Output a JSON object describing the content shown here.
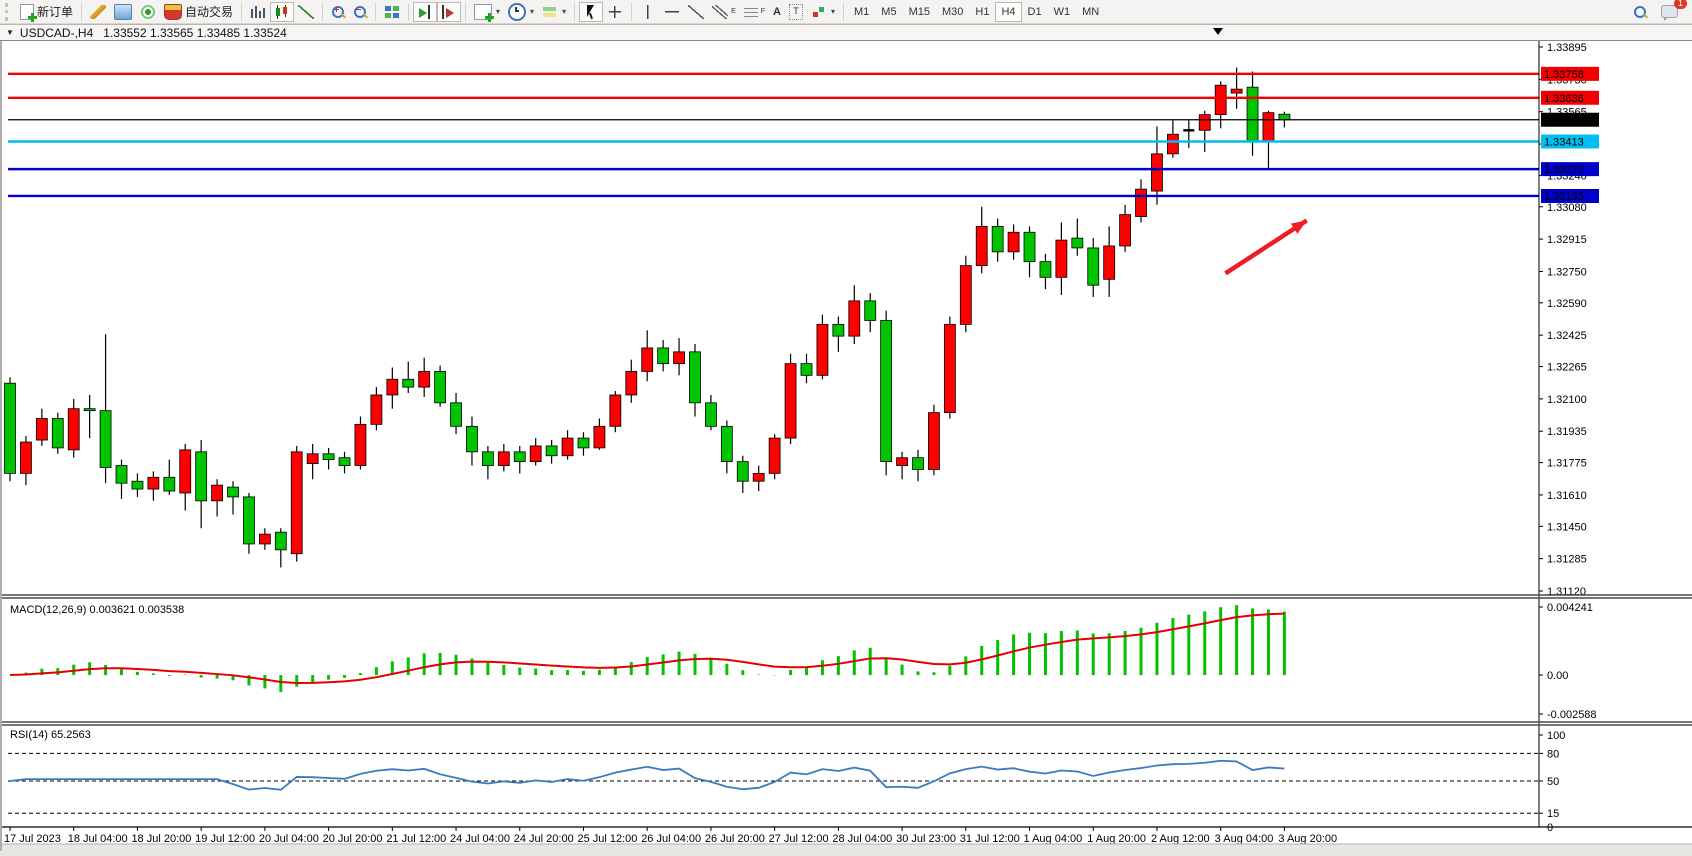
{
  "toolbar": {
    "new_order_label": "新订单",
    "auto_trading_label": "自动交易",
    "timeframes": [
      "M1",
      "M5",
      "M15",
      "M30",
      "H1",
      "H4",
      "D1",
      "W1",
      "MN"
    ],
    "active_timeframe": "H4",
    "notification_count": "1",
    "icon_glyphs": {
      "channel": "E",
      "fibonacci": "F",
      "text_tool": "A",
      "label_tool": "T"
    }
  },
  "title_bar": {
    "symbol_period": "USDCAD-,H4",
    "ohlc": "1.33552 1.33565 1.33485 1.33524"
  },
  "chart_data": {
    "type": "candlestick",
    "symbol": "USDCAD",
    "timeframe": "H4",
    "up_color": "#FF0000",
    "down_color": "#00C400",
    "current_price": "1.33524",
    "price_ticks": [
      "1.33895",
      "1.33730",
      "1.33565",
      "1.33400",
      "1.33240",
      "1.33080",
      "1.32915",
      "1.32750",
      "1.32590",
      "1.32425",
      "1.32265",
      "1.32100",
      "1.31935",
      "1.31775",
      "1.31610",
      "1.31450",
      "1.31285",
      "1.31120"
    ],
    "time_labels": [
      "17 Jul 2023",
      "18 Jul 04:00",
      "18 Jul 20:00",
      "19 Jul 12:00",
      "20 Jul 04:00",
      "20 Jul 20:00",
      "21 Jul 12:00",
      "24 Jul 04:00",
      "24 Jul 20:00",
      "25 Jul 12:00",
      "26 Jul 04:00",
      "26 Jul 20:00",
      "27 Jul 12:00",
      "28 Jul 04:00",
      "30 Jul 23:00",
      "31 Jul 12:00",
      "1 Aug 04:00",
      "1 Aug 20:00",
      "2 Aug 12:00",
      "3 Aug 04:00",
      "3 Aug 20:00"
    ],
    "label_every_n_candles": 4,
    "horizontal_lines": [
      {
        "price": 1.33758,
        "label": "1.33758",
        "color": "#F40000",
        "width": 2.4
      },
      {
        "price": 1.33636,
        "label": "1.33636",
        "color": "#F40000",
        "width": 2.4
      },
      {
        "price": 1.33524,
        "label": "1.33524",
        "color": "#000000",
        "width": 1.2,
        "role": "current-price"
      },
      {
        "price": 1.33413,
        "label": "1.33413",
        "color": "#00BFEF",
        "width": 2.4
      },
      {
        "price": 1.33272,
        "label": "1.33272",
        "color": "#0000C8",
        "width": 2.4
      },
      {
        "price": 1.33135,
        "label": "1.33135",
        "color": "#0000C8",
        "width": 2.4
      }
    ],
    "candles": [
      [
        1.3218,
        1.3221,
        1.3168,
        1.3172
      ],
      [
        1.3172,
        1.3191,
        1.3166,
        1.3188
      ],
      [
        1.3189,
        1.3205,
        1.3186,
        1.32
      ],
      [
        1.32,
        1.3203,
        1.3182,
        1.3185
      ],
      [
        1.3184,
        1.321,
        1.318,
        1.3205
      ],
      [
        1.3205,
        1.3212,
        1.319,
        1.3204
      ],
      [
        1.3204,
        1.3243,
        1.3167,
        1.3175
      ],
      [
        1.3176,
        1.3179,
        1.3159,
        1.3167
      ],
      [
        1.3168,
        1.3172,
        1.316,
        1.3164
      ],
      [
        1.3164,
        1.3173,
        1.3158,
        1.317
      ],
      [
        1.317,
        1.3179,
        1.3161,
        1.3163
      ],
      [
        1.3162,
        1.3187,
        1.3153,
        1.3184
      ],
      [
        1.3183,
        1.3189,
        1.3144,
        1.3158
      ],
      [
        1.3158,
        1.3169,
        1.315,
        1.3166
      ],
      [
        1.3165,
        1.3168,
        1.3151,
        1.316
      ],
      [
        1.316,
        1.3162,
        1.3131,
        1.3136
      ],
      [
        1.3136,
        1.3144,
        1.3133,
        1.3141
      ],
      [
        1.3142,
        1.3144,
        1.3124,
        1.3133
      ],
      [
        1.3131,
        1.3186,
        1.3127,
        1.3183
      ],
      [
        1.3177,
        1.3187,
        1.3169,
        1.3182
      ],
      [
        1.3182,
        1.3185,
        1.3174,
        1.3179
      ],
      [
        1.318,
        1.3183,
        1.3172,
        1.3176
      ],
      [
        1.3176,
        1.3201,
        1.3174,
        1.3197
      ],
      [
        1.3197,
        1.3216,
        1.3194,
        1.3212
      ],
      [
        1.3212,
        1.3226,
        1.3205,
        1.322
      ],
      [
        1.322,
        1.3229,
        1.3213,
        1.3216
      ],
      [
        1.3216,
        1.3231,
        1.3211,
        1.3224
      ],
      [
        1.3224,
        1.3227,
        1.3206,
        1.3208
      ],
      [
        1.3208,
        1.3213,
        1.3192,
        1.3196
      ],
      [
        1.3196,
        1.3201,
        1.3176,
        1.3183
      ],
      [
        1.3183,
        1.3186,
        1.3169,
        1.3176
      ],
      [
        1.3176,
        1.3187,
        1.3173,
        1.3183
      ],
      [
        1.3183,
        1.3186,
        1.3172,
        1.3178
      ],
      [
        1.3178,
        1.319,
        1.3176,
        1.3186
      ],
      [
        1.3186,
        1.3189,
        1.3177,
        1.3181
      ],
      [
        1.3181,
        1.3194,
        1.3179,
        1.319
      ],
      [
        1.319,
        1.3193,
        1.3181,
        1.3185
      ],
      [
        1.3185,
        1.32,
        1.3184,
        1.3196
      ],
      [
        1.3196,
        1.3214,
        1.3193,
        1.3212
      ],
      [
        1.3212,
        1.323,
        1.3208,
        1.3224
      ],
      [
        1.3224,
        1.3245,
        1.3219,
        1.3236
      ],
      [
        1.3236,
        1.324,
        1.3224,
        1.3228
      ],
      [
        1.3228,
        1.3241,
        1.3222,
        1.3234
      ],
      [
        1.3234,
        1.3238,
        1.3201,
        1.3208
      ],
      [
        1.3208,
        1.3212,
        1.3194,
        1.3196
      ],
      [
        1.3196,
        1.3199,
        1.3172,
        1.3178
      ],
      [
        1.3178,
        1.3181,
        1.3162,
        1.3168
      ],
      [
        1.3168,
        1.3176,
        1.3163,
        1.3172
      ],
      [
        1.3172,
        1.3192,
        1.3169,
        1.319
      ],
      [
        1.319,
        1.3233,
        1.3187,
        1.3228
      ],
      [
        1.3228,
        1.3233,
        1.3218,
        1.3222
      ],
      [
        1.3222,
        1.3253,
        1.322,
        1.3248
      ],
      [
        1.3248,
        1.3252,
        1.3234,
        1.3242
      ],
      [
        1.3242,
        1.3268,
        1.3238,
        1.326
      ],
      [
        1.326,
        1.3264,
        1.3244,
        1.325
      ],
      [
        1.325,
        1.3255,
        1.3171,
        1.3178
      ],
      [
        1.3176,
        1.3183,
        1.3169,
        1.318
      ],
      [
        1.318,
        1.3184,
        1.3168,
        1.3174
      ],
      [
        1.3174,
        1.3207,
        1.3171,
        1.3203
      ],
      [
        1.3203,
        1.3252,
        1.32,
        1.3248
      ],
      [
        1.3248,
        1.3283,
        1.3244,
        1.3278
      ],
      [
        1.3278,
        1.3308,
        1.3274,
        1.3298
      ],
      [
        1.3298,
        1.3302,
        1.328,
        1.3285
      ],
      [
        1.3285,
        1.3299,
        1.3281,
        1.3295
      ],
      [
        1.3295,
        1.3298,
        1.3272,
        1.328
      ],
      [
        1.328,
        1.3284,
        1.3266,
        1.3272
      ],
      [
        1.3272,
        1.33,
        1.3263,
        1.3291
      ],
      [
        1.3292,
        1.3302,
        1.3283,
        1.3287
      ],
      [
        1.3287,
        1.3292,
        1.3262,
        1.3268
      ],
      [
        1.3271,
        1.3298,
        1.3262,
        1.3288
      ],
      [
        1.3288,
        1.3309,
        1.3285,
        1.3304
      ],
      [
        1.3303,
        1.3322,
        1.33,
        1.3317
      ],
      [
        1.3316,
        1.3349,
        1.3309,
        1.3335
      ],
      [
        1.3335,
        1.3352,
        1.3333,
        1.3345
      ],
      [
        1.3347,
        1.3352,
        1.3338,
        1.3347
      ],
      [
        1.3347,
        1.3357,
        1.3336,
        1.3355
      ],
      [
        1.3355,
        1.3372,
        1.3348,
        1.337
      ],
      [
        1.3366,
        1.3379,
        1.3358,
        1.3368
      ],
      [
        1.3369,
        1.3377,
        1.3334,
        1.3341
      ],
      [
        1.3341,
        1.3357,
        1.3327,
        1.3356
      ],
      [
        1.33552,
        1.33565,
        1.33485,
        1.33524
      ]
    ],
    "indicators": {
      "macd": {
        "label": "MACD(12,26,9) 0.003621 0.003538",
        "params": [
          12,
          26,
          9
        ],
        "value": "0.003621",
        "signal_value": "0.003538",
        "axis_labels": [
          "0.004241",
          "0.00",
          "-0.002588"
        ],
        "histogram_color": "#00C400",
        "signal_color": "#E60000"
      },
      "rsi": {
        "label": "RSI(14) 65.2563",
        "period": 14,
        "value": "65.2563",
        "level_labels": [
          "100",
          "80",
          "50",
          "15",
          "0"
        ],
        "dashed_levels": [
          80,
          50,
          15
        ],
        "line_color": "#3B7BBE"
      }
    },
    "arrow_annotation": {
      "from_candle": 76.3,
      "from_price": 1.3274,
      "to_candle": 81.4,
      "to_price": 1.3301,
      "color": "#EE1C24"
    }
  }
}
